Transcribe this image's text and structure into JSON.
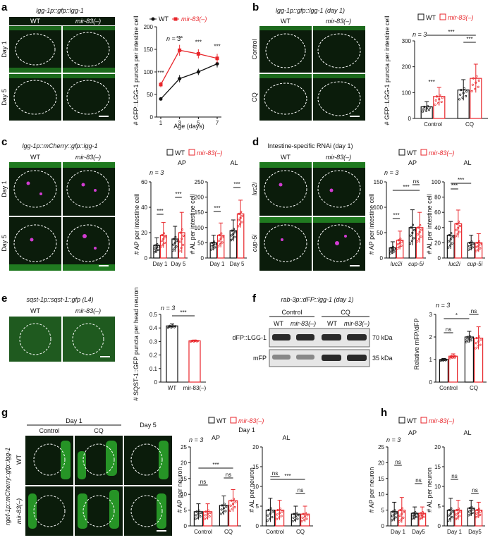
{
  "colors": {
    "wt": "#111111",
    "mut": "#e8262b",
    "gfp": "#32c832",
    "mcherry": "#d23cd2",
    "micro_bg": "#0b1c0b"
  },
  "legend": {
    "wt": "WT",
    "mut": "mir-83(–)"
  },
  "labels": {
    "a": "a",
    "b": "b",
    "c": "c",
    "d": "d",
    "e": "e",
    "f": "f",
    "g": "g",
    "h": "h"
  },
  "panel_a": {
    "title": "lgg-1p::gfp::lgg-1",
    "col_wt": "WT",
    "col_mut": "mir-83(–)",
    "row1": "Day 1",
    "row2": "Day 5",
    "n": "n = 3",
    "ylabel": "# GFP::LGG-1 puncta per intestine cell",
    "xlabel": "Age (days)",
    "stars": [
      "***",
      "***",
      "***",
      "***"
    ]
  },
  "panel_b": {
    "title": "lgg-1p::gfp::lgg-1 (day 1)",
    "col_wt": "WT",
    "col_mut": "mir-83(–)",
    "row1": "Control",
    "row2": "CQ",
    "n": "n = 3",
    "ylabel": "# GFP::LGG-1 puncta per intestine cell",
    "stars": [
      "***",
      "***",
      "***"
    ]
  },
  "panel_c": {
    "title": "lgg-1p::mCherry::gfp::lgg-1",
    "col_wt": "WT",
    "col_mut": "mir-83(–)",
    "row1": "Day 1",
    "row2": "Day 5",
    "n": "n = 3",
    "ap": "AP",
    "al": "AL",
    "ylab_ap": "# AP per intestine cell",
    "ylab_al": "# AL per intestine cell",
    "stars": [
      "***",
      "***",
      "***",
      "***"
    ]
  },
  "panel_d": {
    "title": "Intestine-specific RNAi (day 1)",
    "col_wt": "WT",
    "col_mut": "mir-83(–)",
    "row1": "luc2i",
    "row2": "cup-5i",
    "n": "n = 3",
    "ap": "AP",
    "al": "AL",
    "ylab_ap": "# AP per intestine cell",
    "ylab_al": "# AL per intestine cell",
    "stars": [
      "***",
      "***",
      "ns",
      "***",
      "***"
    ]
  },
  "panel_e": {
    "title": "sqst-1p::sqst-1::gfp (L4)",
    "col_wt": "WT",
    "col_mut": "mir-83(–)",
    "n": "n = 3",
    "ylabel": "# SQST-1::GFP puncta per head neuron",
    "stars": [
      "***"
    ]
  },
  "panel_f": {
    "title": "rab-3p::dFP::lgg-1 (day 1)",
    "ctrl": "Control",
    "cq": "CQ",
    "wt": "WT",
    "mut": "mir-83(–)",
    "band1": "dFP::LGG-1",
    "band2": "mFP",
    "kda1": "70 kDa",
    "kda2": "35 kDa",
    "n": "n = 3",
    "ylabel": "Relative mFP/dFP",
    "stars": [
      "*",
      "ns",
      "ns"
    ]
  },
  "panel_g": {
    "side": "rgef-1p::mCherry::gfp::lgg-1",
    "col1": "Control",
    "col2": "CQ",
    "col3": "Day 5",
    "top": "Day 1",
    "row1": "WT",
    "row2": "mir-83(–)",
    "chart_top": "Day 1",
    "n": "n = 3",
    "ap": "AP",
    "al": "AL",
    "ylab_ap": "# AP per neuron",
    "ylab_al": "# AL per neuron",
    "stars": [
      "ns",
      "***",
      "ns",
      "ns",
      "***",
      "ns"
    ]
  },
  "panel_h": {
    "n": "n = 3",
    "ap": "AP",
    "al": "AL",
    "ylab_ap": "# AP per neuron",
    "ylab_al": "# AL per neuron",
    "stars": [
      "ns",
      "ns",
      "ns",
      "ns"
    ]
  },
  "chart_data": [
    {
      "id": "a",
      "type": "line",
      "x": [
        1,
        3,
        5,
        7
      ],
      "xlabel": "Age (days)",
      "ylabel": "# GFP::LGG-1 puncta per intestine cell",
      "ylim": [
        0,
        200
      ],
      "yticks": [
        0,
        50,
        100,
        150,
        200
      ],
      "series": [
        {
          "name": "WT",
          "values": [
            40,
            85,
            100,
            118
          ],
          "err": [
            3,
            8,
            7,
            8
          ]
        },
        {
          "name": "mir-83(–)",
          "values": [
            72,
            148,
            140,
            130
          ],
          "err": [
            6,
            12,
            10,
            10
          ]
        }
      ]
    },
    {
      "id": "b",
      "type": "bar",
      "categories": [
        "Control",
        "CQ"
      ],
      "ylim": [
        0,
        300
      ],
      "yticks": [
        0,
        100,
        200,
        300
      ],
      "ylabel": "# GFP::LGG-1 puncta per intestine cell",
      "series": [
        {
          "name": "WT",
          "values": [
            45,
            110
          ],
          "err": [
            20,
            40
          ]
        },
        {
          "name": "mir-83(–)",
          "values": [
            85,
            155
          ],
          "err": [
            35,
            55
          ]
        }
      ]
    },
    {
      "id": "c_ap",
      "type": "bar",
      "categories": [
        "Day 1",
        "Day 5"
      ],
      "ylim": [
        0,
        60
      ],
      "yticks": [
        0,
        20,
        40,
        60
      ],
      "ylabel": "# AP per intestine cell",
      "series": [
        {
          "name": "WT",
          "values": [
            10,
            15
          ],
          "err": [
            6,
            10
          ]
        },
        {
          "name": "mir-83(–)",
          "values": [
            18,
            20
          ],
          "err": [
            10,
            16
          ]
        }
      ]
    },
    {
      "id": "c_al",
      "type": "bar",
      "categories": [
        "Day 1",
        "Day 5"
      ],
      "ylim": [
        0,
        250
      ],
      "yticks": [
        0,
        50,
        100,
        150,
        200,
        250
      ],
      "ylabel": "# AL per intestine cell",
      "series": [
        {
          "name": "WT",
          "values": [
            50,
            90
          ],
          "err": [
            25,
            35
          ]
        },
        {
          "name": "mir-83(–)",
          "values": [
            75,
            145
          ],
          "err": [
            40,
            45
          ]
        }
      ]
    },
    {
      "id": "d_ap",
      "type": "bar",
      "categories": [
        "luc2i",
        "cup-5i"
      ],
      "ylim": [
        0,
        150
      ],
      "yticks": [
        0,
        50,
        100,
        150
      ],
      "ylabel": "# AP per intestine cell",
      "series": [
        {
          "name": "WT",
          "values": [
            20,
            60
          ],
          "err": [
            12,
            35
          ]
        },
        {
          "name": "mir-83(–)",
          "values": [
            35,
            60
          ],
          "err": [
            18,
            30
          ]
        }
      ]
    },
    {
      "id": "d_al",
      "type": "bar",
      "categories": [
        "luc2i",
        "cup-5i"
      ],
      "ylim": [
        0,
        100
      ],
      "yticks": [
        0,
        20,
        40,
        60,
        80,
        100
      ],
      "ylabel": "# AL per intestine cell",
      "series": [
        {
          "name": "WT",
          "values": [
            30,
            20
          ],
          "err": [
            18,
            10
          ]
        },
        {
          "name": "mir-83(–)",
          "values": [
            45,
            20
          ],
          "err": [
            18,
            12
          ]
        }
      ]
    },
    {
      "id": "e",
      "type": "bar",
      "categories": [
        "WT",
        "mir-83(–)"
      ],
      "ylim": [
        0,
        0.5
      ],
      "yticks": [
        0,
        0.1,
        0.2,
        0.3,
        0.4,
        0.5
      ],
      "ylabel": "# SQST-1::GFP puncta per head neuron",
      "values": [
        0.415,
        0.305
      ],
      "err": [
        0.015,
        0.006
      ]
    },
    {
      "id": "f",
      "type": "bar",
      "categories": [
        "Control",
        "CQ"
      ],
      "ylim": [
        0,
        3
      ],
      "yticks": [
        0,
        1,
        2,
        3
      ],
      "ylabel": "Relative mFP/dFP",
      "series": [
        {
          "name": "WT",
          "values": [
            1.0,
            2.0
          ],
          "err": [
            0.05,
            0.25
          ]
        },
        {
          "name": "mir-83(–)",
          "values": [
            1.15,
            1.95
          ],
          "err": [
            0.1,
            0.5
          ]
        }
      ]
    },
    {
      "id": "g_ap",
      "type": "bar",
      "categories": [
        "Control",
        "CQ"
      ],
      "ylim": [
        0,
        25
      ],
      "yticks": [
        0,
        5,
        10,
        15,
        20,
        25
      ],
      "ylabel": "# AP per neuron",
      "series": [
        {
          "name": "WT",
          "values": [
            4.5,
            6.5
          ],
          "err": [
            2.5,
            3
          ]
        },
        {
          "name": "mir-83(–)",
          "values": [
            4.5,
            8
          ],
          "err": [
            2.5,
            3.5
          ]
        }
      ]
    },
    {
      "id": "g_al",
      "type": "bar",
      "categories": [
        "Control",
        "CQ"
      ],
      "ylim": [
        0,
        20
      ],
      "yticks": [
        0,
        5,
        10,
        15,
        20
      ],
      "ylabel": "# AL per neuron",
      "series": [
        {
          "name": "WT",
          "values": [
            4,
            3
          ],
          "err": [
            3,
            2
          ]
        },
        {
          "name": "mir-83(–)",
          "values": [
            4,
            3
          ],
          "err": [
            2.5,
            2
          ]
        }
      ]
    },
    {
      "id": "h_ap",
      "type": "bar",
      "categories": [
        "Day 1",
        "Day5"
      ],
      "ylim": [
        0,
        25
      ],
      "yticks": [
        0,
        5,
        10,
        15,
        20,
        25
      ],
      "ylabel": "# AP per neuron",
      "series": [
        {
          "name": "WT",
          "values": [
            4.5,
            4
          ],
          "err": [
            3,
            2
          ]
        },
        {
          "name": "mir-83(–)",
          "values": [
            5,
            4
          ],
          "err": [
            4,
            2
          ]
        }
      ]
    },
    {
      "id": "h_al",
      "type": "bar",
      "categories": [
        "Day 1",
        "Day5"
      ],
      "ylim": [
        0,
        20
      ],
      "yticks": [
        0,
        5,
        10,
        15,
        20
      ],
      "ylabel": "# AL per neuron",
      "series": [
        {
          "name": "WT",
          "values": [
            4,
            4.5
          ],
          "err": [
            3,
            2
          ]
        },
        {
          "name": "mir-83(–)",
          "values": [
            4,
            4
          ],
          "err": [
            2.5,
            2
          ]
        }
      ]
    }
  ]
}
